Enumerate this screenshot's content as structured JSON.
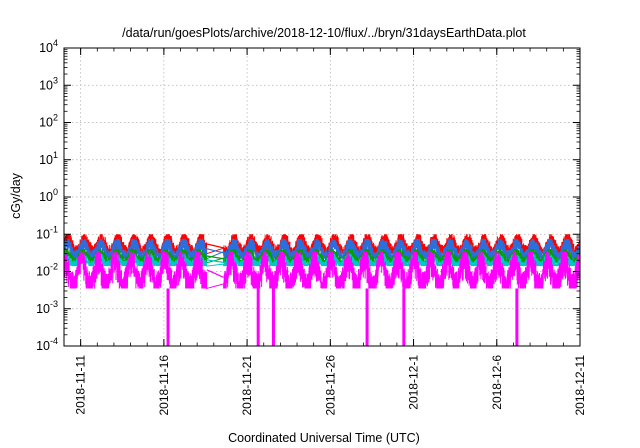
{
  "chart_data": {
    "type": "line",
    "title": "/data/run/goesPlots/archive/2018-12-10/flux/../bryn/31daysEarthData.plot",
    "xlabel": "Coordinated Universal Time (UTC)",
    "ylabel": "cGy/day",
    "x_scale": "time",
    "y_scale": "log",
    "xlim": [
      "2018-11-10",
      "2018-12-11"
    ],
    "ylim": [
      0.0001,
      10000
    ],
    "grid": true,
    "legend": "none",
    "x_ticks": [
      "2018-11-11",
      "2018-11-16",
      "2018-11-21",
      "2018-11-26",
      "2018-12-1",
      "2018-12-6",
      "2018-12-11"
    ],
    "y_ticks": [
      {
        "value": 0.0001,
        "base": "10",
        "exp": "-4"
      },
      {
        "value": 0.001,
        "base": "10",
        "exp": "-3"
      },
      {
        "value": 0.01,
        "base": "10",
        "exp": "-2"
      },
      {
        "value": 0.1,
        "base": "10",
        "exp": "-1"
      },
      {
        "value": 1,
        "base": "10",
        "exp": "0"
      },
      {
        "value": 10,
        "base": "10",
        "exp": "1"
      },
      {
        "value": 100,
        "base": "10",
        "exp": "2"
      },
      {
        "value": 1000,
        "base": "10",
        "exp": "3"
      },
      {
        "value": 10000,
        "base": "10",
        "exp": "4"
      }
    ],
    "data_gap": [
      "2018-11-18T14:00",
      "2018-11-19T14:00"
    ],
    "dropouts": [
      "2018-11-16T06:00",
      "2018-11-21T16:00",
      "2018-11-22T14:00",
      "2018-11-28T05:00",
      "2018-11-30T10:00",
      "2018-12-7T05:00"
    ],
    "series": [
      {
        "color": "#ff0000",
        "low": 0.03,
        "high": 0.1
      },
      {
        "color": "#2a6fdb",
        "low": 0.022,
        "high": 0.075
      },
      {
        "color": "#00a000",
        "low": 0.017,
        "high": 0.04
      },
      {
        "color": "#00c8c8",
        "low": 0.014,
        "high": 0.03
      },
      {
        "color": "#ff00ff",
        "low": 0.0035,
        "high": 0.035
      }
    ]
  }
}
